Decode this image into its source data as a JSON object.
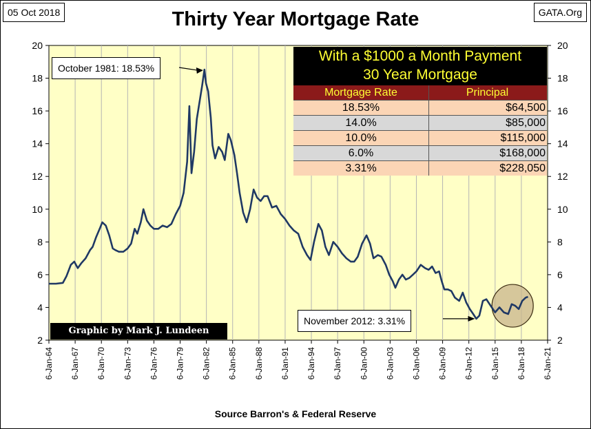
{
  "header": {
    "date": "05 Oct 2018",
    "site": "GATA.Org",
    "title": "Thirty Year Mortgage Rate"
  },
  "source": "Source Barron's & Federal Reserve",
  "credit": "Graphic by Mark J. Lundeen",
  "callouts": {
    "peak": "October 1981: 18.53%",
    "low": "November 2012: 3.31%"
  },
  "table": {
    "title_line1": "With a $1000 a Month Payment",
    "title_line2": "30 Year Mortgage",
    "col1": "Mortgage Rate",
    "col2": "Principal",
    "rows": [
      {
        "rate": "18.53%",
        "principal": "$64,500"
      },
      {
        "rate": "14.0%",
        "principal": "$85,000"
      },
      {
        "rate": "10.0%",
        "principal": "$115,000"
      },
      {
        "rate": "6.0%",
        "principal": "$168,000"
      },
      {
        "rate": "3.31%",
        "principal": "$228,050"
      }
    ]
  },
  "colors": {
    "plot_bg": "#ffffc6",
    "line": "#1f3864",
    "grid": "#b4b4b4",
    "circle_fill": "#c8b48c",
    "circle_stroke": "#3a2a10"
  },
  "chart_data": {
    "type": "line",
    "title": "Thirty Year Mortgage Rate",
    "xlabel": "",
    "ylabel": "",
    "xlim": [
      1964.0,
      2021.0
    ],
    "ylim": [
      2,
      20
    ],
    "y_ticks": [
      2,
      4,
      6,
      8,
      10,
      12,
      14,
      16,
      18,
      20
    ],
    "x_ticks": [
      "6-Jan-64",
      "6-Jan-67",
      "6-Jan-70",
      "6-Jan-73",
      "6-Jan-76",
      "6-Jan-79",
      "6-Jan-82",
      "6-Jan-85",
      "6-Jan-88",
      "6-Jan-91",
      "6-Jan-94",
      "6-Jan-97",
      "6-Jan-00",
      "6-Jan-03",
      "6-Jan-06",
      "6-Jan-09",
      "6-Jan-12",
      "6-Jan-15",
      "6-Jan-18",
      "6-Jan-21"
    ],
    "grid": "vertical",
    "series": [
      {
        "x": [
          1964.0,
          1964.8,
          1965.6,
          1966.0,
          1966.5,
          1966.9,
          1967.3,
          1967.7,
          1968.2,
          1968.7,
          1969.0,
          1969.4,
          1969.8,
          1970.1,
          1970.5,
          1970.9,
          1971.3,
          1971.6,
          1972.0,
          1972.5,
          1973.0,
          1973.4,
          1973.8,
          1974.1,
          1974.5,
          1974.8,
          1975.2,
          1975.6,
          1976.0,
          1976.5,
          1977.0,
          1977.5,
          1978.0,
          1978.5,
          1979.0,
          1979.4,
          1979.8,
          1980.05,
          1980.3,
          1980.6,
          1980.9,
          1981.2,
          1981.5,
          1981.78,
          1981.95,
          1982.2,
          1982.5,
          1982.7,
          1983.0,
          1983.4,
          1983.8,
          1984.1,
          1984.5,
          1984.8,
          1985.2,
          1985.5,
          1985.8,
          1986.2,
          1986.6,
          1987.0,
          1987.4,
          1987.8,
          1988.2,
          1988.6,
          1989.0,
          1989.5,
          1990.0,
          1990.5,
          1991.0,
          1991.5,
          1992.0,
          1992.5,
          1993.0,
          1993.5,
          1993.9,
          1994.3,
          1994.8,
          1995.2,
          1995.6,
          1996.0,
          1996.5,
          1997.0,
          1997.5,
          1998.0,
          1998.5,
          1998.9,
          1999.3,
          1999.8,
          2000.3,
          2000.7,
          2001.1,
          2001.6,
          2002.0,
          2002.5,
          2002.9,
          2003.3,
          2003.6,
          2004.0,
          2004.4,
          2004.8,
          2005.2,
          2005.6,
          2006.0,
          2006.5,
          2007.0,
          2007.4,
          2007.8,
          2008.2,
          2008.6,
          2008.9,
          2009.2,
          2009.6,
          2010.0,
          2010.4,
          2010.9,
          2011.3,
          2011.7,
          2012.1,
          2012.5,
          2012.85,
          2013.2,
          2013.6,
          2014.0,
          2014.5,
          2015.0,
          2015.5,
          2016.0,
          2016.5,
          2016.9,
          2017.3,
          2017.7,
          2018.1,
          2018.5,
          2018.76
        ],
        "y": [
          5.45,
          5.45,
          5.5,
          5.9,
          6.6,
          6.8,
          6.4,
          6.7,
          7.0,
          7.5,
          7.7,
          8.3,
          8.8,
          9.2,
          9.0,
          8.4,
          7.6,
          7.5,
          7.4,
          7.4,
          7.6,
          7.9,
          8.8,
          8.5,
          9.2,
          10.0,
          9.3,
          9.0,
          8.8,
          8.8,
          9.0,
          8.9,
          9.1,
          9.7,
          10.2,
          11.0,
          12.9,
          16.3,
          12.2,
          13.5,
          15.5,
          16.5,
          17.5,
          18.53,
          17.7,
          17.2,
          15.6,
          13.9,
          13.1,
          13.8,
          13.5,
          13.0,
          14.6,
          14.2,
          13.3,
          12.2,
          11.0,
          9.8,
          9.2,
          10.0,
          11.2,
          10.7,
          10.5,
          10.8,
          10.8,
          10.1,
          10.2,
          9.7,
          9.4,
          9.0,
          8.7,
          8.5,
          7.7,
          7.2,
          6.9,
          8.0,
          9.1,
          8.7,
          7.7,
          7.2,
          8.0,
          7.7,
          7.3,
          7.0,
          6.8,
          6.8,
          7.1,
          7.9,
          8.4,
          7.9,
          7.0,
          7.2,
          7.1,
          6.6,
          6.0,
          5.6,
          5.2,
          5.7,
          6.0,
          5.7,
          5.8,
          6.0,
          6.2,
          6.6,
          6.4,
          6.3,
          6.5,
          6.1,
          6.2,
          5.6,
          5.1,
          5.1,
          5.0,
          4.6,
          4.4,
          4.9,
          4.3,
          3.9,
          3.6,
          3.31,
          3.5,
          4.4,
          4.5,
          4.1,
          3.7,
          4.0,
          3.7,
          3.6,
          4.2,
          4.1,
          3.9,
          4.4,
          4.6,
          4.65
        ]
      }
    ],
    "annotations": [
      {
        "label": "October 1981: 18.53%",
        "x": 1981.78,
        "y": 18.53
      },
      {
        "label": "November 2012: 3.31%",
        "x": 2012.85,
        "y": 3.31
      }
    ],
    "highlight_circle": {
      "x": 2017.0,
      "y": 4.1
    }
  }
}
